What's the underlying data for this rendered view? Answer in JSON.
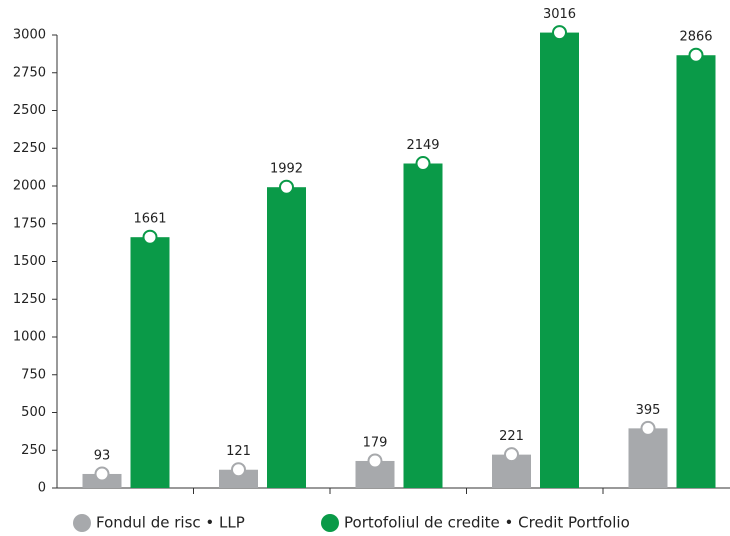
{
  "chart_data": {
    "type": "bar",
    "categories": [
      null,
      null,
      null,
      null,
      null
    ],
    "series": [
      {
        "name": "Fondul de risc • LLP",
        "color": "#a7a9ac",
        "values": [
          93,
          121,
          179,
          221,
          395
        ]
      },
      {
        "name": "Portofoliul de credite • Credit Portfolio",
        "color": "#0a9a48",
        "values": [
          1661,
          1992,
          2149,
          3016,
          2866
        ]
      }
    ],
    "ylim": [
      0,
      3000
    ],
    "yticks": [
      0,
      250,
      500,
      750,
      1000,
      1250,
      1500,
      1750,
      2000,
      2250,
      2500,
      2750,
      3000
    ],
    "grid": false
  }
}
